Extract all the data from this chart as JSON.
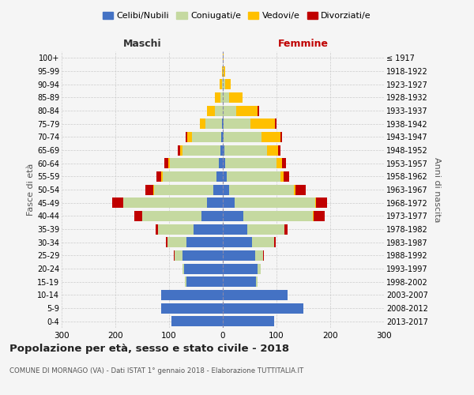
{
  "age_groups": [
    "0-4",
    "5-9",
    "10-14",
    "15-19",
    "20-24",
    "25-29",
    "30-34",
    "35-39",
    "40-44",
    "45-49",
    "50-54",
    "55-59",
    "60-64",
    "65-69",
    "70-74",
    "75-79",
    "80-84",
    "85-89",
    "90-94",
    "95-99",
    "100+"
  ],
  "birth_years": [
    "2013-2017",
    "2008-2012",
    "2003-2007",
    "1998-2002",
    "1993-1997",
    "1988-1992",
    "1983-1987",
    "1978-1982",
    "1973-1977",
    "1968-1972",
    "1963-1967",
    "1958-1962",
    "1953-1957",
    "1948-1952",
    "1943-1947",
    "1938-1942",
    "1933-1937",
    "1928-1932",
    "1923-1927",
    "1918-1922",
    "≤ 1917"
  ],
  "males": {
    "celibe": [
      95,
      115,
      115,
      68,
      72,
      75,
      68,
      55,
      40,
      30,
      18,
      12,
      8,
      5,
      3,
      2,
      0,
      0,
      0,
      0,
      0
    ],
    "coniugato": [
      0,
      0,
      0,
      2,
      3,
      15,
      35,
      65,
      110,
      155,
      110,
      100,
      90,
      70,
      55,
      30,
      15,
      5,
      2,
      0,
      0
    ],
    "vedovo": [
      0,
      0,
      0,
      0,
      0,
      0,
      0,
      0,
      0,
      1,
      1,
      2,
      3,
      5,
      8,
      10,
      15,
      10,
      4,
      1,
      0
    ],
    "divorziato": [
      0,
      0,
      0,
      0,
      0,
      1,
      3,
      5,
      15,
      20,
      15,
      10,
      8,
      4,
      3,
      1,
      0,
      0,
      0,
      0,
      0
    ]
  },
  "females": {
    "nubile": [
      95,
      150,
      120,
      62,
      65,
      60,
      55,
      45,
      38,
      22,
      12,
      8,
      5,
      3,
      2,
      2,
      0,
      0,
      0,
      0,
      0
    ],
    "coniugata": [
      0,
      0,
      0,
      2,
      5,
      15,
      40,
      70,
      130,
      150,
      120,
      100,
      95,
      80,
      70,
      50,
      25,
      12,
      5,
      2,
      0
    ],
    "vedova": [
      0,
      0,
      0,
      0,
      0,
      0,
      0,
      0,
      1,
      2,
      4,
      5,
      10,
      20,
      35,
      45,
      40,
      25,
      10,
      3,
      1
    ],
    "divorziata": [
      0,
      0,
      0,
      0,
      0,
      2,
      4,
      5,
      20,
      20,
      18,
      10,
      8,
      4,
      4,
      3,
      2,
      0,
      0,
      0,
      0
    ]
  },
  "colors": {
    "celibe": "#4472c4",
    "coniugato": "#c5d9a0",
    "vedovo": "#ffc000",
    "divorziato": "#c00000"
  },
  "legend_labels": [
    "Celibi/Nubili",
    "Coniugati/e",
    "Vedovi/e",
    "Divorziati/e"
  ],
  "title": "Popolazione per età, sesso e stato civile - 2018",
  "subtitle": "COMUNE DI MORNAGO (VA) - Dati ISTAT 1° gennaio 2018 - Elaborazione TUTTITALIA.IT",
  "xlabel_left": "Maschi",
  "xlabel_right": "Femmine",
  "ylabel_left": "Fasce di età",
  "ylabel_right": "Anni di nascita",
  "xlim": 300,
  "background_color": "#f5f5f5",
  "grid_color": "#cccccc"
}
